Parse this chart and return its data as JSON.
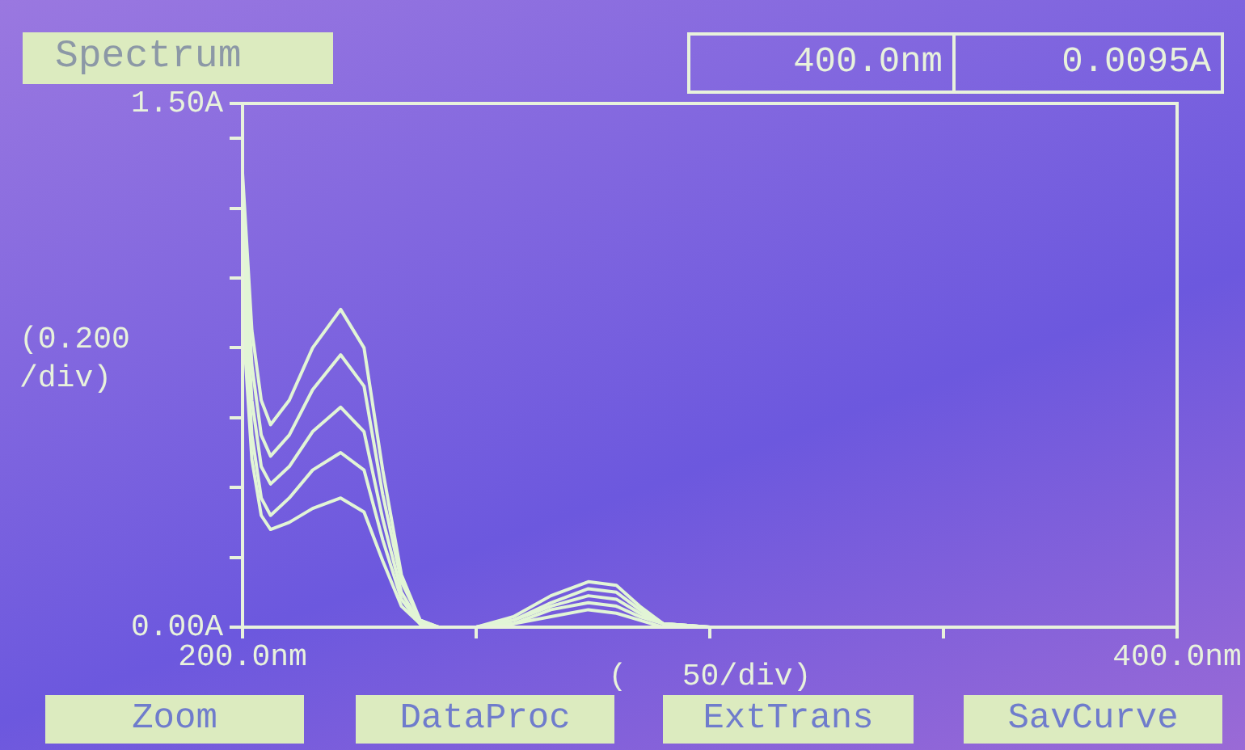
{
  "chart_data": {
    "type": "line",
    "title": "Spectrum",
    "xlabel": "(   50/div)",
    "ylabel": "(0.200\n/div)",
    "annotations": [
      "400.0nm",
      "0.0095A",
      "Zoom",
      "DataProc",
      "ExtTrans",
      "SavCurve"
    ],
    "x": [
      200,
      202,
      204,
      206,
      210,
      215,
      221,
      226,
      230,
      234,
      238,
      242,
      250,
      258,
      266,
      274,
      280,
      285,
      290,
      300,
      400
    ],
    "series": [
      {
        "color": "#e2f5d6",
        "values": [
          1.3,
          0.85,
          0.65,
          0.58,
          0.65,
          0.8,
          0.91,
          0.8,
          0.45,
          0.15,
          0.02,
          0,
          0,
          0.03,
          0.09,
          0.13,
          0.12,
          0.06,
          0.01,
          0,
          0
        ]
      },
      {
        "color": "#e2f5d6",
        "values": [
          1.2,
          0.75,
          0.55,
          0.49,
          0.55,
          0.68,
          0.78,
          0.69,
          0.38,
          0.13,
          0.02,
          0,
          0,
          0.02,
          0.07,
          0.11,
          0.1,
          0.05,
          0.01,
          0,
          0
        ]
      },
      {
        "color": "#e2f5d6",
        "values": [
          1.1,
          0.65,
          0.46,
          0.41,
          0.46,
          0.56,
          0.63,
          0.56,
          0.31,
          0.1,
          0.01,
          0,
          0,
          0.02,
          0.06,
          0.09,
          0.08,
          0.04,
          0.01,
          0,
          0
        ]
      },
      {
        "color": "#e2f5d6",
        "values": [
          1.0,
          0.55,
          0.37,
          0.32,
          0.37,
          0.45,
          0.5,
          0.45,
          0.25,
          0.08,
          0.01,
          0,
          0,
          0.01,
          0.05,
          0.07,
          0.06,
          0.03,
          0.01,
          0,
          0
        ]
      },
      {
        "color": "#e2f5d6",
        "values": [
          0.9,
          0.48,
          0.32,
          0.28,
          0.3,
          0.34,
          0.37,
          0.33,
          0.19,
          0.06,
          0.01,
          0,
          0,
          0.01,
          0.03,
          0.05,
          0.04,
          0.02,
          0,
          0,
          0
        ]
      }
    ],
    "xlim": [
      200,
      400
    ],
    "xticks": [
      {
        "value": 200,
        "label": "200.0nm"
      },
      {
        "value": 250,
        "label": null
      },
      {
        "value": 300,
        "label": null
      },
      {
        "value": 350,
        "label": null
      },
      {
        "value": 400,
        "label": "400.0nm"
      }
    ],
    "ylim": [
      0,
      1.5
    ],
    "yticks": [
      {
        "value": 0,
        "label": "0.00A"
      },
      {
        "value": 0.2,
        "label": null
      },
      {
        "value": 0.4,
        "label": null
      },
      {
        "value": 0.6,
        "label": null
      },
      {
        "value": 0.8,
        "label": null
      },
      {
        "value": 1.0,
        "label": null
      },
      {
        "value": 1.2,
        "label": null
      },
      {
        "value": 1.4,
        "label": null
      },
      {
        "value": 1.5,
        "label": "1.50A"
      }
    ],
    "marker": "none",
    "line_style": "solid",
    "legend": false
  }
}
